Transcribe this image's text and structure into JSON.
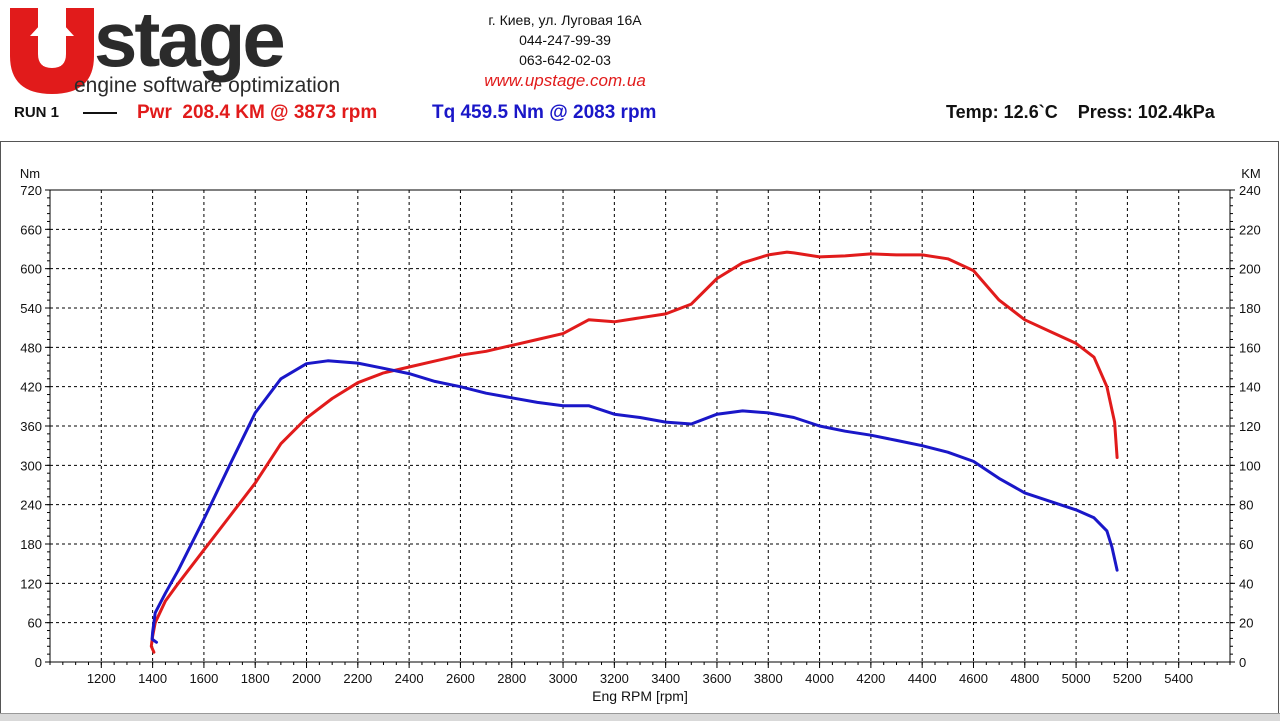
{
  "header": {
    "logo_text": "Upstage",
    "logo_tagline": "engine software optimization",
    "contact": {
      "address": "г. Киев, ул. Луговая 16А",
      "phone1": "044-247-99-39",
      "phone2": "063-642-02-03",
      "website": "www.upstage.com.ua"
    }
  },
  "run": {
    "label": "RUN 1",
    "power_summary": "Pwr  208.4 KM @ 3873 rpm",
    "torque_summary": "Tq 459.5 Nm @ 2083 rpm",
    "environment": "Temp: 12.6`C    Press: 102.4kPa"
  },
  "colors": {
    "power": "#e11b1b",
    "torque": "#1a17c8",
    "grid": "#000000"
  },
  "chart_data": {
    "type": "line",
    "title": "",
    "xlabel": "Eng RPM [rpm]",
    "ylabel_left": "Nm",
    "ylabel_right": "KM",
    "xlim": [
      1000,
      5600
    ],
    "ylim_left": [
      0,
      720
    ],
    "ylim_right": [
      0,
      240
    ],
    "x_ticks": [
      1200,
      1400,
      1600,
      1800,
      2000,
      2200,
      2400,
      2600,
      2800,
      3000,
      3200,
      3400,
      3600,
      3800,
      4000,
      4200,
      4400,
      4600,
      4800,
      5000,
      5200,
      5400
    ],
    "y_ticks_left": [
      0,
      60,
      120,
      180,
      240,
      300,
      360,
      420,
      480,
      540,
      600,
      660,
      720
    ],
    "y_ticks_right": [
      0,
      20,
      40,
      60,
      80,
      100,
      120,
      140,
      160,
      180,
      200,
      220,
      240
    ],
    "grid": true,
    "series": [
      {
        "name": "Pwr",
        "axis": "right",
        "color": "#e11b1b",
        "points": [
          [
            1405,
            5
          ],
          [
            1395,
            8
          ],
          [
            1400,
            13
          ],
          [
            1410,
            20
          ],
          [
            1450,
            31
          ],
          [
            1500,
            40
          ],
          [
            1600,
            57
          ],
          [
            1700,
            74
          ],
          [
            1800,
            91
          ],
          [
            1900,
            111
          ],
          [
            2000,
            124
          ],
          [
            2100,
            134
          ],
          [
            2200,
            142
          ],
          [
            2300,
            147
          ],
          [
            2400,
            150
          ],
          [
            2500,
            153
          ],
          [
            2600,
            156
          ],
          [
            2700,
            158
          ],
          [
            2800,
            161
          ],
          [
            2900,
            164
          ],
          [
            3000,
            167
          ],
          [
            3100,
            174
          ],
          [
            3200,
            173
          ],
          [
            3300,
            175
          ],
          [
            3400,
            177
          ],
          [
            3500,
            182
          ],
          [
            3600,
            195
          ],
          [
            3700,
            203
          ],
          [
            3800,
            207
          ],
          [
            3873,
            208.4
          ],
          [
            3900,
            208
          ],
          [
            4000,
            206
          ],
          [
            4100,
            206.5
          ],
          [
            4200,
            207.5
          ],
          [
            4300,
            207
          ],
          [
            4400,
            207
          ],
          [
            4500,
            205
          ],
          [
            4600,
            199
          ],
          [
            4700,
            184
          ],
          [
            4800,
            174
          ],
          [
            4900,
            168
          ],
          [
            5000,
            162
          ],
          [
            5070,
            155
          ],
          [
            5120,
            140
          ],
          [
            5150,
            122
          ],
          [
            5160,
            104
          ]
        ]
      },
      {
        "name": "Tq",
        "axis": "left",
        "color": "#1a17c8",
        "points": [
          [
            1415,
            30
          ],
          [
            1398,
            35
          ],
          [
            1400,
            45
          ],
          [
            1410,
            75
          ],
          [
            1450,
            105
          ],
          [
            1500,
            140
          ],
          [
            1600,
            218
          ],
          [
            1700,
            300
          ],
          [
            1800,
            380
          ],
          [
            1900,
            432
          ],
          [
            2000,
            455
          ],
          [
            2083,
            459.5
          ],
          [
            2200,
            456
          ],
          [
            2300,
            448
          ],
          [
            2400,
            440
          ],
          [
            2500,
            428
          ],
          [
            2600,
            420
          ],
          [
            2700,
            410
          ],
          [
            2800,
            403
          ],
          [
            2900,
            396
          ],
          [
            3000,
            391
          ],
          [
            3100,
            391
          ],
          [
            3200,
            378
          ],
          [
            3300,
            373
          ],
          [
            3400,
            366
          ],
          [
            3500,
            363
          ],
          [
            3600,
            378
          ],
          [
            3700,
            383
          ],
          [
            3800,
            380
          ],
          [
            3900,
            373
          ],
          [
            4000,
            360
          ],
          [
            4100,
            352
          ],
          [
            4200,
            346
          ],
          [
            4300,
            338
          ],
          [
            4400,
            330
          ],
          [
            4500,
            320
          ],
          [
            4600,
            306
          ],
          [
            4700,
            280
          ],
          [
            4800,
            258
          ],
          [
            4900,
            245
          ],
          [
            5000,
            232
          ],
          [
            5070,
            220
          ],
          [
            5120,
            200
          ],
          [
            5140,
            175
          ],
          [
            5160,
            140
          ]
        ]
      }
    ]
  }
}
